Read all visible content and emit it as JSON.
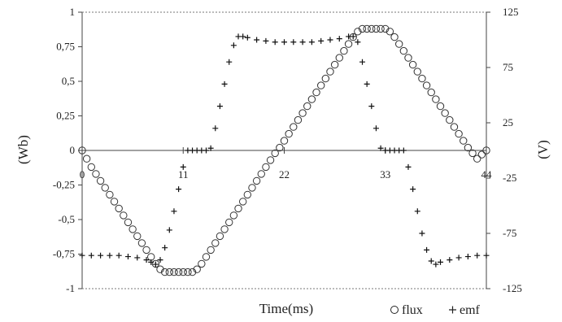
{
  "chart_data": {
    "type": "scatter",
    "title": "",
    "xlabel": "Time(ms)",
    "ylabel_left": "(Wb)",
    "ylabel_right": "(V)",
    "xlim": [
      0,
      44
    ],
    "ylim_left": [
      -1,
      1
    ],
    "ylim_right": [
      -125,
      125
    ],
    "x_ticks": [
      "0",
      "11",
      "22",
      "33",
      "44"
    ],
    "x_tick_values": [
      0,
      11,
      22,
      33,
      44
    ],
    "y_left_ticks": [
      "1",
      "0,75",
      "0,5",
      "0,25",
      "0",
      "-0,25",
      "-0,5",
      "-0,75",
      "-1"
    ],
    "y_left_tick_values": [
      1,
      0.75,
      0.5,
      0.25,
      0,
      -0.25,
      -0.5,
      -0.75,
      -1
    ],
    "y_right_ticks": [
      "125",
      "75",
      "25",
      "-25",
      "-75",
      "-125"
    ],
    "y_right_tick_values": [
      125,
      75,
      25,
      -25,
      -75,
      -125
    ],
    "grid": false,
    "legend_position": "bottom-right",
    "series": [
      {
        "name": "flux",
        "marker": "circle",
        "axis": "left",
        "points": [
          [
            0,
            0
          ],
          [
            0.5,
            -0.06
          ],
          [
            1,
            -0.12
          ],
          [
            1.5,
            -0.17
          ],
          [
            2,
            -0.22
          ],
          [
            2.5,
            -0.27
          ],
          [
            3,
            -0.32
          ],
          [
            3.5,
            -0.37
          ],
          [
            4,
            -0.42
          ],
          [
            4.5,
            -0.47
          ],
          [
            5,
            -0.52
          ],
          [
            5.5,
            -0.57
          ],
          [
            6,
            -0.62
          ],
          [
            6.5,
            -0.67
          ],
          [
            7,
            -0.72
          ],
          [
            7.5,
            -0.77
          ],
          [
            8,
            -0.82
          ],
          [
            8.5,
            -0.86
          ],
          [
            9,
            -0.88
          ],
          [
            9.5,
            -0.88
          ],
          [
            10,
            -0.88
          ],
          [
            10.5,
            -0.88
          ],
          [
            11,
            -0.88
          ],
          [
            11.5,
            -0.88
          ],
          [
            12,
            -0.88
          ],
          [
            12.5,
            -0.86
          ],
          [
            13,
            -0.82
          ],
          [
            13.5,
            -0.77
          ],
          [
            14,
            -0.72
          ],
          [
            14.5,
            -0.67
          ],
          [
            15,
            -0.62
          ],
          [
            15.5,
            -0.57
          ],
          [
            16,
            -0.52
          ],
          [
            16.5,
            -0.47
          ],
          [
            17,
            -0.42
          ],
          [
            17.5,
            -0.37
          ],
          [
            18,
            -0.32
          ],
          [
            18.5,
            -0.27
          ],
          [
            19,
            -0.22
          ],
          [
            19.5,
            -0.17
          ],
          [
            20,
            -0.12
          ],
          [
            20.5,
            -0.07
          ],
          [
            21,
            -0.02
          ],
          [
            21.5,
            0.02
          ],
          [
            22,
            0.07
          ],
          [
            22.5,
            0.12
          ],
          [
            23,
            0.17
          ],
          [
            23.5,
            0.22
          ],
          [
            24,
            0.27
          ],
          [
            24.5,
            0.32
          ],
          [
            25,
            0.37
          ],
          [
            25.5,
            0.42
          ],
          [
            26,
            0.47
          ],
          [
            26.5,
            0.52
          ],
          [
            27,
            0.57
          ],
          [
            27.5,
            0.62
          ],
          [
            28,
            0.67
          ],
          [
            28.5,
            0.72
          ],
          [
            29,
            0.77
          ],
          [
            29.5,
            0.82
          ],
          [
            30,
            0.86
          ],
          [
            30.5,
            0.88
          ],
          [
            31,
            0.88
          ],
          [
            31.5,
            0.88
          ],
          [
            32,
            0.88
          ],
          [
            32.5,
            0.88
          ],
          [
            33,
            0.88
          ],
          [
            33.5,
            0.86
          ],
          [
            34,
            0.82
          ],
          [
            34.5,
            0.77
          ],
          [
            35,
            0.72
          ],
          [
            35.5,
            0.67
          ],
          [
            36,
            0.62
          ],
          [
            36.5,
            0.57
          ],
          [
            37,
            0.52
          ],
          [
            37.5,
            0.47
          ],
          [
            38,
            0.42
          ],
          [
            38.5,
            0.37
          ],
          [
            39,
            0.32
          ],
          [
            39.5,
            0.27
          ],
          [
            40,
            0.22
          ],
          [
            40.5,
            0.17
          ],
          [
            41,
            0.12
          ],
          [
            41.5,
            0.07
          ],
          [
            42,
            0.02
          ],
          [
            42.5,
            -0.02
          ],
          [
            43,
            -0.06
          ],
          [
            43.5,
            -0.03
          ],
          [
            44,
            0
          ]
        ]
      },
      {
        "name": "emf",
        "marker": "plus",
        "axis": "right",
        "points": [
          [
            0,
            -95
          ],
          [
            1,
            -95
          ],
          [
            2,
            -95
          ],
          [
            3,
            -95
          ],
          [
            4,
            -95
          ],
          [
            5,
            -96
          ],
          [
            6,
            -97
          ],
          [
            7,
            -99
          ],
          [
            7.5,
            -101
          ],
          [
            8,
            -103
          ],
          [
            8.5,
            -99
          ],
          [
            9,
            -88
          ],
          [
            9.5,
            -72
          ],
          [
            10,
            -55
          ],
          [
            10.5,
            -35
          ],
          [
            11,
            -15
          ],
          [
            11.5,
            0
          ],
          [
            12,
            0
          ],
          [
            12.5,
            0
          ],
          [
            13,
            0
          ],
          [
            13.5,
            0
          ],
          [
            14,
            2
          ],
          [
            14.5,
            20
          ],
          [
            15,
            40
          ],
          [
            15.5,
            60
          ],
          [
            16,
            80
          ],
          [
            16.5,
            95
          ],
          [
            17,
            103
          ],
          [
            17.5,
            103
          ],
          [
            18,
            102
          ],
          [
            19,
            100
          ],
          [
            20,
            99
          ],
          [
            21,
            98
          ],
          [
            22,
            98
          ],
          [
            23,
            98
          ],
          [
            24,
            98
          ],
          [
            25,
            98
          ],
          [
            26,
            99
          ],
          [
            27,
            100
          ],
          [
            28,
            101
          ],
          [
            29,
            103
          ],
          [
            29.5,
            103
          ],
          [
            30,
            98
          ],
          [
            30.5,
            80
          ],
          [
            31,
            60
          ],
          [
            31.5,
            40
          ],
          [
            32,
            20
          ],
          [
            32.5,
            2
          ],
          [
            33,
            0
          ],
          [
            33.5,
            0
          ],
          [
            34,
            0
          ],
          [
            34.5,
            0
          ],
          [
            35,
            0
          ],
          [
            35.5,
            -15
          ],
          [
            36,
            -35
          ],
          [
            36.5,
            -55
          ],
          [
            37,
            -75
          ],
          [
            37.5,
            -90
          ],
          [
            38,
            -100
          ],
          [
            38.5,
            -103
          ],
          [
            39,
            -101
          ],
          [
            40,
            -99
          ],
          [
            41,
            -97
          ],
          [
            42,
            -96
          ],
          [
            43,
            -95
          ],
          [
            44,
            -95
          ]
        ]
      }
    ]
  }
}
